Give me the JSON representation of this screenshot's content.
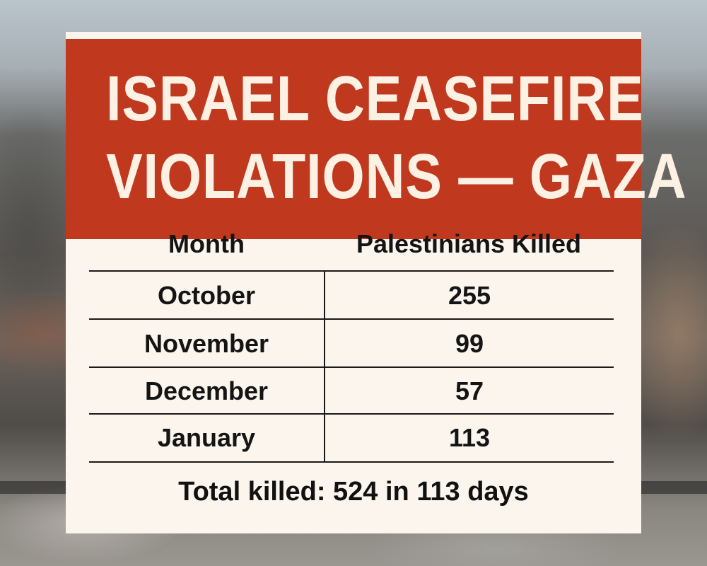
{
  "title": {
    "line1": "ISRAEL CEASEFIRE",
    "line2": "VIOLATIONS — GAZA"
  },
  "colors": {
    "banner": "#c0391f",
    "card": "#fbf5ee",
    "title_text": "#fdf1e4",
    "body_text": "#141414"
  },
  "table": {
    "headers": [
      "Month",
      "Palestinians Killed"
    ],
    "rows": [
      {
        "month": "October",
        "killed": "255"
      },
      {
        "month": "November",
        "killed": "99"
      },
      {
        "month": "December",
        "killed": "57"
      },
      {
        "month": "January",
        "killed": "113"
      }
    ]
  },
  "total": "Total killed: 524 in 113 days"
}
